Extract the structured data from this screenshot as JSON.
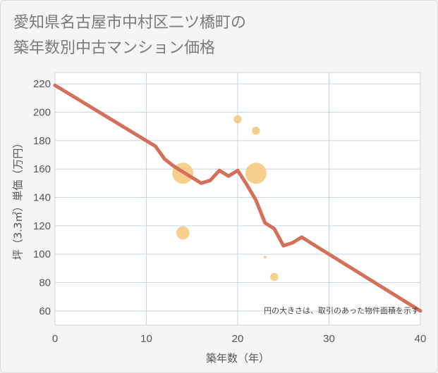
{
  "title_lines": [
    "愛知県名古屋市中村区二ツ橋町の",
    "築年数別中古マンション価格"
  ],
  "colors": {
    "line": "#d4705a",
    "bubble": "#f5c878",
    "grid": "#c8d6e0",
    "plot_bg": "#ffffff"
  },
  "chart_data": {
    "type": "scatter",
    "title": "愛知県名古屋市中村区二ツ橋町の築年数別中古マンション価格",
    "xlabel": "築年数（年）",
    "ylabel": "坪（3.3㎡）単価（万円）",
    "xlim": [
      0,
      40
    ],
    "ylim": [
      50,
      228
    ],
    "x_ticks": [
      0,
      10,
      20,
      30,
      40
    ],
    "y_ticks": [
      60,
      80,
      100,
      120,
      140,
      160,
      180,
      200,
      220
    ],
    "grid": true,
    "note": "円の大きさは、取引のあった物件面積を示す",
    "series": [
      {
        "kind": "line",
        "points": [
          [
            0,
            219
          ],
          [
            11,
            176
          ],
          [
            12,
            167
          ],
          [
            13,
            162
          ],
          [
            14,
            158
          ],
          [
            15,
            154
          ],
          [
            16,
            150
          ],
          [
            17,
            152
          ],
          [
            18,
            159
          ],
          [
            19,
            155
          ],
          [
            20,
            159
          ],
          [
            21,
            149
          ],
          [
            22,
            138
          ],
          [
            23,
            122
          ],
          [
            24,
            118
          ],
          [
            25,
            106
          ],
          [
            26,
            108
          ],
          [
            27,
            112
          ],
          [
            30,
            100
          ],
          [
            40,
            60
          ]
        ]
      },
      {
        "kind": "bubble",
        "points": [
          {
            "x": 14,
            "y": 157,
            "size": 1.0
          },
          {
            "x": 22,
            "y": 157,
            "size": 1.0
          },
          {
            "x": 14,
            "y": 115,
            "size": 0.62
          },
          {
            "x": 20,
            "y": 195,
            "size": 0.38
          },
          {
            "x": 22,
            "y": 187,
            "size": 0.38
          },
          {
            "x": 24,
            "y": 84,
            "size": 0.38
          },
          {
            "x": 23,
            "y": 98,
            "size": 0.12
          }
        ]
      }
    ]
  }
}
